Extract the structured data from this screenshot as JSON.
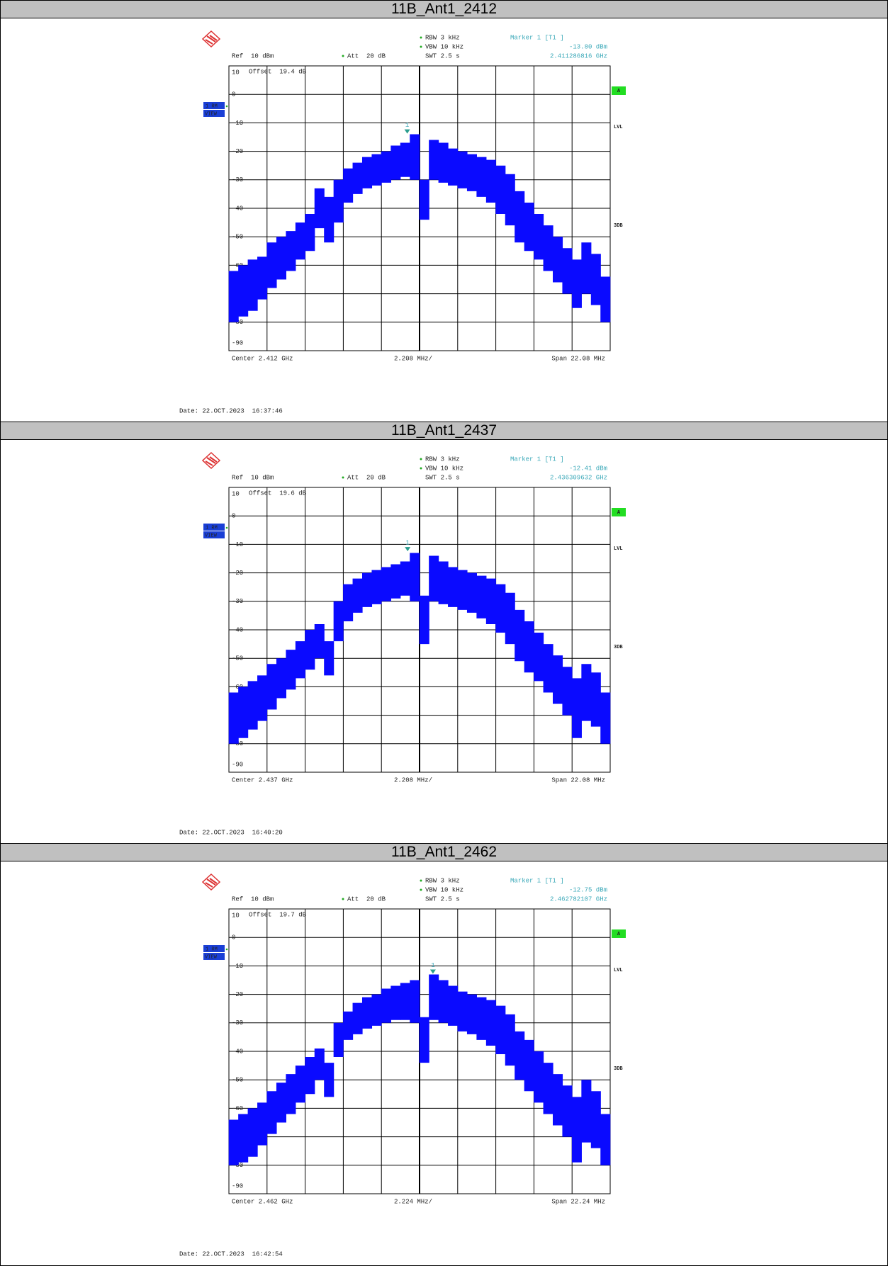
{
  "sections": [
    {
      "title": "11B_Ant1_2412",
      "plot": {
        "rbw": "RBW 3 kHz",
        "vbw": "VBW 10 kHz",
        "swt": "SWT 2.5 s",
        "ref": "Ref  10 dBm",
        "att": "Att  20 dB",
        "marker_title": "Marker 1 [T1 ]",
        "marker_number": "1",
        "marker_level": {
          "value": -13.8,
          "label": "-13.80 dBm"
        },
        "marker_freq": {
          "value": 2411286816,
          "label": "2.411286816 GHz"
        },
        "offset": "Offset  19.4 dB",
        "trace_tag": "1 RM",
        "view": "VIEW",
        "side_labels": [
          "A",
          "LVL",
          "3DB"
        ],
        "ylim": [
          -90,
          10
        ],
        "yticks": [
          10,
          0,
          -10,
          -20,
          -30,
          -40,
          -50,
          -60,
          -70,
          -80,
          -90
        ],
        "center": {
          "value": 2412000000,
          "label": "Center 2.412 GHz"
        },
        "div": "2.208 MHz/",
        "span": {
          "value": 22080000,
          "label": "Span 22.08 MHz"
        },
        "trace_high": [
          -62,
          -60,
          -58,
          -57,
          -52,
          -50,
          -48,
          -45,
          -42,
          -33,
          -36,
          -30,
          -26,
          -24,
          -22,
          -21,
          -20,
          -18,
          -17,
          -14,
          -30,
          -16,
          -17,
          -19,
          -20,
          -21,
          -22,
          -23,
          -25,
          -28,
          -34,
          -38,
          -42,
          -46,
          -50,
          -54,
          -58,
          -52,
          -56,
          -64
        ],
        "trace_low": [
          -80,
          -78,
          -76,
          -72,
          -68,
          -65,
          -62,
          -58,
          -55,
          -47,
          -52,
          -45,
          -38,
          -35,
          -33,
          -32,
          -31,
          -30,
          -29,
          -30,
          -44,
          -30,
          -31,
          -32,
          -33,
          -34,
          -36,
          -38,
          -42,
          -46,
          -52,
          -55,
          -58,
          -62,
          -66,
          -70,
          -75,
          -70,
          -74,
          -80
        ]
      },
      "date": "Date: 22.OCT.2023  16:37:46"
    },
    {
      "title": "11B_Ant1_2437",
      "plot": {
        "rbw": "RBW 3 kHz",
        "vbw": "VBW 10 kHz",
        "swt": "SWT 2.5 s",
        "ref": "Ref  10 dBm",
        "att": "Att  20 dB",
        "marker_title": "Marker 1 [T1 ]",
        "marker_number": "1",
        "marker_level": {
          "value": -12.41,
          "label": "-12.41 dBm"
        },
        "marker_freq": {
          "value": 2436309632,
          "label": "2.436309632 GHz"
        },
        "offset": "Offset  19.6 dB",
        "trace_tag": "1 RM",
        "view": "VIEW",
        "side_labels": [
          "A",
          "LVL",
          "3DB"
        ],
        "ylim": [
          -90,
          10
        ],
        "yticks": [
          10,
          0,
          -10,
          -20,
          -30,
          -40,
          -50,
          -60,
          -70,
          -80,
          -90
        ],
        "center": {
          "value": 2437000000,
          "label": "Center 2.437 GHz"
        },
        "div": "2.208 MHz/",
        "span": {
          "value": 22080000,
          "label": "Span 22.08 MHz"
        },
        "trace_high": [
          -62,
          -60,
          -58,
          -56,
          -52,
          -50,
          -47,
          -44,
          -40,
          -38,
          -44,
          -30,
          -24,
          -22,
          -20,
          -19,
          -18,
          -17,
          -16,
          -13,
          -28,
          -14,
          -16,
          -18,
          -19,
          -20,
          -21,
          -22,
          -24,
          -27,
          -33,
          -37,
          -41,
          -45,
          -49,
          -53,
          -57,
          -52,
          -55,
          -62
        ],
        "trace_low": [
          -80,
          -78,
          -75,
          -72,
          -68,
          -64,
          -61,
          -57,
          -54,
          -50,
          -56,
          -44,
          -37,
          -34,
          -32,
          -31,
          -30,
          -29,
          -28,
          -30,
          -45,
          -30,
          -31,
          -32,
          -33,
          -34,
          -36,
          -38,
          -41,
          -45,
          -51,
          -55,
          -58,
          -62,
          -66,
          -70,
          -78,
          -72,
          -74,
          -80
        ]
      },
      "date": "Date: 22.OCT.2023  16:40:20"
    },
    {
      "title": "11B_Ant1_2462",
      "plot": {
        "rbw": "RBW 3 kHz",
        "vbw": "VBW 10 kHz",
        "swt": "SWT 2.5 s",
        "ref": "Ref  10 dBm",
        "att": "Att  20 dB",
        "marker_title": "Marker 1 [T1 ]",
        "marker_number": "1",
        "marker_level": {
          "value": -12.75,
          "label": "-12.75 dBm"
        },
        "marker_freq": {
          "value": 2462782107,
          "label": "2.462782107 GHz"
        },
        "offset": "Offset  19.7 dB",
        "trace_tag": "1 RM",
        "view": "VIEW",
        "side_labels": [
          "A",
          "LVL",
          "3DB"
        ],
        "ylim": [
          -90,
          10
        ],
        "yticks": [
          10,
          0,
          -10,
          -20,
          -30,
          -40,
          -50,
          -60,
          -70,
          -80,
          -90
        ],
        "center": {
          "value": 2462000000,
          "label": "Center 2.462 GHz"
        },
        "div": "2.224 MHz/",
        "span": {
          "value": 22240000,
          "label": "Span 22.24 MHz"
        },
        "trace_high": [
          -64,
          -62,
          -60,
          -58,
          -54,
          -51,
          -48,
          -45,
          -42,
          -39,
          -44,
          -30,
          -26,
          -23,
          -21,
          -20,
          -18,
          -17,
          -16,
          -15,
          -28,
          -13,
          -15,
          -17,
          -19,
          -20,
          -21,
          -22,
          -24,
          -27,
          -33,
          -36,
          -40,
          -44,
          -48,
          -52,
          -56,
          -50,
          -54,
          -62
        ],
        "trace_low": [
          -80,
          -79,
          -77,
          -73,
          -69,
          -65,
          -62,
          -58,
          -55,
          -50,
          -56,
          -42,
          -36,
          -34,
          -32,
          -31,
          -30,
          -29,
          -29,
          -30,
          -44,
          -29,
          -30,
          -31,
          -33,
          -34,
          -36,
          -38,
          -41,
          -45,
          -50,
          -54,
          -58,
          -62,
          -66,
          -70,
          -79,
          -72,
          -74,
          -80
        ]
      },
      "date": "Date: 22.OCT.2023  16:42:54"
    }
  ]
}
